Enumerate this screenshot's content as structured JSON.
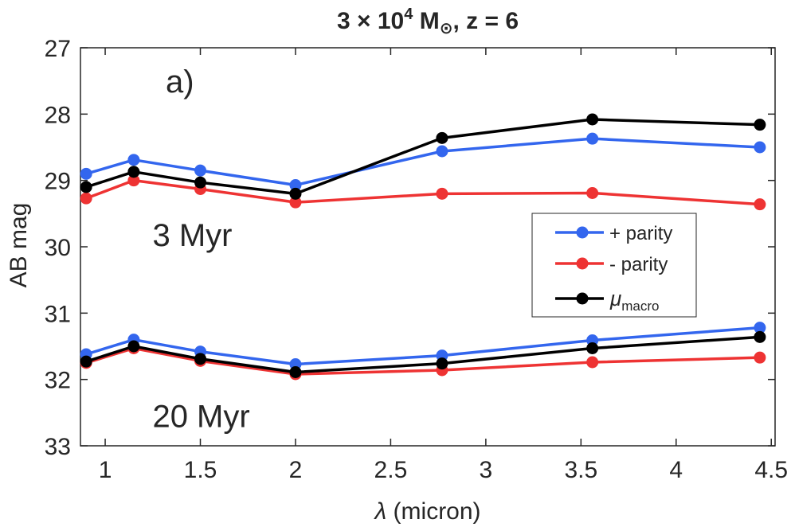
{
  "chart_data": {
    "type": "line",
    "title": {
      "main": "3 × 10",
      "exp": "4",
      "unit": "M",
      "sub": "⊙",
      "rest": ",  z  =  6"
    },
    "xlabel": {
      "symbol": "λ",
      "text": "(micron)"
    },
    "ylabel": "AB mag",
    "xlim": [
      0.87,
      4.52
    ],
    "ylim": [
      27,
      33
    ],
    "y_reversed": true,
    "xticks": [
      1,
      1.5,
      2,
      2.5,
      3,
      3.5,
      4,
      4.5
    ],
    "xtick_labels": [
      "1",
      "1.5",
      "2",
      "2.5",
      "3",
      "3.5",
      "4",
      "4.5"
    ],
    "yticks": [
      27,
      28,
      29,
      30,
      31,
      32,
      33
    ],
    "ytick_labels": [
      "27",
      "28",
      "29",
      "30",
      "31",
      "32",
      "33"
    ],
    "panel_label": "a)",
    "annotations": [
      {
        "text": "3 Myr",
        "x": 1.55,
        "y": 29.82
      },
      {
        "text": "20 Myr",
        "x": 1.55,
        "y": 32.55
      }
    ],
    "legend_position": "right-center",
    "series": [
      {
        "name": "+ parity",
        "label": "+ parity",
        "color": "#3366ee",
        "group": "3 Myr",
        "x": [
          0.9,
          1.15,
          1.5,
          2.0,
          2.77,
          3.56,
          4.44
        ],
        "y": [
          28.9,
          28.69,
          28.85,
          29.07,
          28.56,
          28.37,
          28.5
        ]
      },
      {
        "name": "- parity",
        "label": "- parity",
        "color": "#ee3333",
        "group": "3 Myr",
        "x": [
          0.9,
          1.15,
          1.5,
          2.0,
          2.77,
          3.56,
          4.44
        ],
        "y": [
          29.27,
          29.0,
          29.13,
          29.33,
          29.2,
          29.19,
          29.36
        ]
      },
      {
        "name": "mu_macro",
        "label": "μ",
        "label_sub": "macro",
        "color": "#000000",
        "group": "3 Myr",
        "x": [
          0.9,
          1.15,
          1.5,
          2.0,
          2.77,
          3.56,
          4.44
        ],
        "y": [
          29.1,
          28.87,
          29.03,
          29.2,
          28.36,
          28.08,
          28.16
        ]
      },
      {
        "name": "+ parity",
        "color": "#3366ee",
        "group": "20 Myr",
        "x": [
          0.9,
          1.15,
          1.5,
          2.0,
          2.77,
          3.56,
          4.44
        ],
        "y": [
          31.62,
          31.4,
          31.58,
          31.77,
          31.64,
          31.41,
          31.22
        ]
      },
      {
        "name": "- parity",
        "color": "#ee3333",
        "group": "20 Myr",
        "x": [
          0.9,
          1.15,
          1.5,
          2.0,
          2.77,
          3.56,
          4.44
        ],
        "y": [
          31.75,
          31.53,
          31.72,
          31.92,
          31.86,
          31.74,
          31.67
        ]
      },
      {
        "name": "mu_macro",
        "color": "#000000",
        "group": "20 Myr",
        "x": [
          0.9,
          1.15,
          1.5,
          2.0,
          2.77,
          3.56,
          4.44
        ],
        "y": [
          31.73,
          31.5,
          31.69,
          31.89,
          31.76,
          31.53,
          31.36
        ]
      }
    ]
  }
}
